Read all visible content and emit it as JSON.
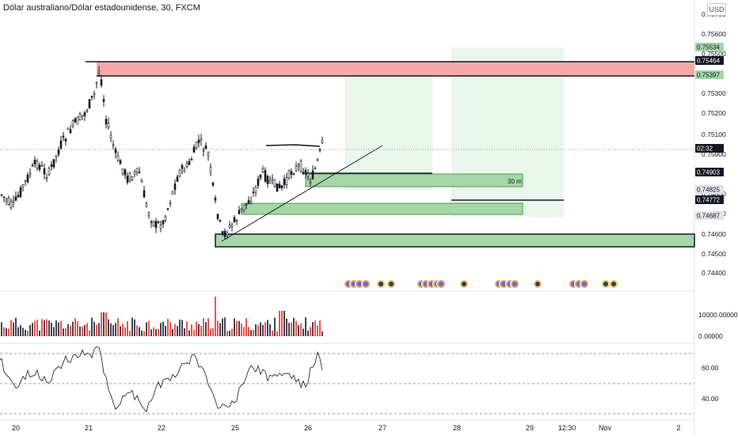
{
  "header": {
    "title": "Dólar australiano/Dólar estadounidense, 30, FXCM",
    "currency": "USD"
  },
  "price_axis": {
    "ticks": [
      "0.75700",
      "0.75600",
      "0.75500",
      "0.75300",
      "0.75200",
      "0.75100",
      "0.75000",
      "0.74800",
      "0.74700",
      "0.74600",
      "0.74500",
      "0.74400"
    ],
    "tags": [
      {
        "text": "0.75534",
        "style": "green"
      },
      {
        "text": "0.75464",
        "style": "dark"
      },
      {
        "text": "0.75397",
        "style": "green"
      },
      {
        "text": "02:32",
        "style": "dark"
      },
      {
        "text": "0.74903",
        "style": "dark"
      },
      {
        "text": "0.74825",
        "style": "gray"
      },
      {
        "text": "0.74772",
        "style": "dark"
      },
      {
        "text": "0.74687",
        "style": "gray"
      }
    ]
  },
  "volume_axis": {
    "ticks": [
      "10000.00000",
      "0.00000"
    ]
  },
  "osc_axis": {
    "ticks": [
      "60.00",
      "40.00"
    ]
  },
  "time_axis": {
    "labels": [
      "20",
      "21",
      "22",
      "25",
      "26",
      "27",
      "28",
      "29",
      "12:30",
      "Nov",
      "2"
    ]
  },
  "annotations": {
    "zone_label": "30 m"
  },
  "colors": {
    "up": "#131722",
    "down": "#131722",
    "resistance_zone": "#f7a9a8",
    "support_zone": "#a5d6a7",
    "target_zone": "#e8f5e9",
    "volume_up": "#434651",
    "volume_down": "#ef5350"
  }
}
